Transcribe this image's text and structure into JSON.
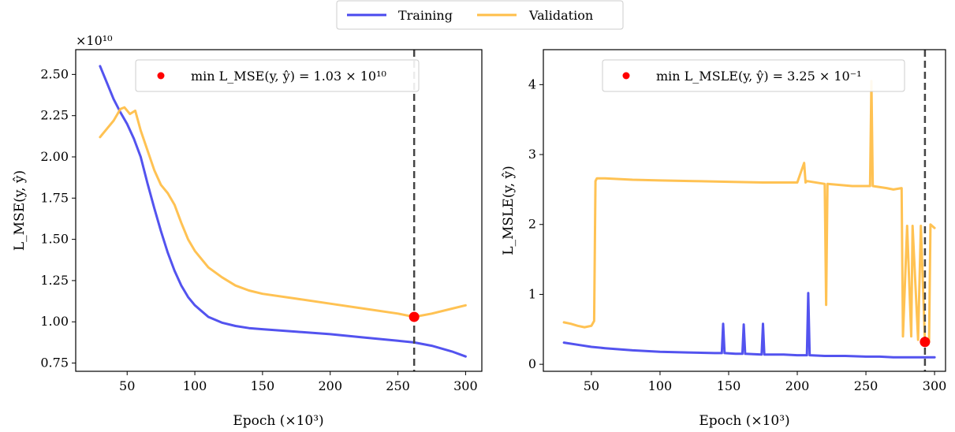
{
  "legend": {
    "items": [
      {
        "label": "Training",
        "color": "#4a4aee"
      },
      {
        "label": "Validation",
        "color": "#ffbf4a"
      }
    ]
  },
  "chart_data": [
    {
      "type": "line",
      "xlabel": "Epoch (×10³)",
      "ylabel": "L_MSE(y, ŷ)",
      "y_multiplier": "×10¹⁰",
      "xlim": [
        12,
        312
      ],
      "ylim": [
        0.7,
        2.65
      ],
      "xticks": [
        50,
        100,
        150,
        200,
        250,
        300
      ],
      "yticks": [
        0.75,
        1.0,
        1.25,
        1.5,
        1.75,
        2.0,
        2.25,
        2.5
      ],
      "ytick_labels": [
        "0.75",
        "1.00",
        "1.25",
        "1.50",
        "1.75",
        "2.00",
        "2.25",
        "2.50"
      ],
      "series": [
        {
          "name": "Training",
          "color": "#4a4aee",
          "x": [
            30,
            35,
            40,
            45,
            50,
            55,
            60,
            65,
            70,
            75,
            80,
            85,
            90,
            95,
            100,
            110,
            120,
            130,
            140,
            150,
            175,
            200,
            225,
            250,
            262,
            275,
            290,
            300
          ],
          "y": [
            2.55,
            2.45,
            2.35,
            2.27,
            2.2,
            2.11,
            2.0,
            1.84,
            1.69,
            1.55,
            1.42,
            1.31,
            1.22,
            1.15,
            1.1,
            1.03,
            0.995,
            0.975,
            0.962,
            0.955,
            0.94,
            0.925,
            0.905,
            0.885,
            0.875,
            0.855,
            0.82,
            0.79
          ]
        },
        {
          "name": "Validation",
          "color": "#ffbf4a",
          "x": [
            30,
            35,
            40,
            45,
            48,
            52,
            56,
            60,
            65,
            70,
            75,
            80,
            85,
            90,
            95,
            100,
            110,
            120,
            130,
            140,
            150,
            175,
            200,
            225,
            250,
            262,
            275,
            290,
            300
          ],
          "y": [
            2.12,
            2.17,
            2.22,
            2.29,
            2.3,
            2.26,
            2.28,
            2.16,
            2.04,
            1.92,
            1.83,
            1.78,
            1.71,
            1.6,
            1.5,
            1.43,
            1.33,
            1.27,
            1.22,
            1.19,
            1.17,
            1.14,
            1.11,
            1.08,
            1.05,
            1.03,
            1.05,
            1.08,
            1.1
          ]
        }
      ],
      "min_marker": {
        "x": 262,
        "y": 1.03,
        "color": "#ff0000"
      },
      "vline_x": 262,
      "annotation": "min L_MSE(y, ŷ) = 1.03 × 10¹⁰"
    },
    {
      "type": "line",
      "xlabel": "Epoch (×10³)",
      "ylabel": "L_MSLE(y, ŷ)",
      "xlim": [
        15,
        308
      ],
      "ylim": [
        -0.1,
        4.5
      ],
      "xticks": [
        50,
        100,
        150,
        200,
        250,
        300
      ],
      "yticks": [
        0,
        1,
        2,
        3,
        4
      ],
      "ytick_labels": [
        "0",
        "1",
        "2",
        "3",
        "4"
      ],
      "series": [
        {
          "name": "Training",
          "color": "#4a4aee",
          "x": [
            30,
            40,
            50,
            60,
            80,
            100,
            120,
            140,
            145,
            146,
            147,
            155,
            160,
            161,
            162,
            174,
            175,
            176,
            190,
            200,
            207,
            208,
            209,
            220,
            235,
            250,
            260,
            270,
            280,
            290,
            300
          ],
          "y": [
            0.31,
            0.28,
            0.25,
            0.23,
            0.2,
            0.18,
            0.17,
            0.16,
            0.16,
            0.58,
            0.16,
            0.15,
            0.15,
            0.57,
            0.15,
            0.14,
            0.58,
            0.14,
            0.14,
            0.13,
            0.13,
            1.02,
            0.13,
            0.12,
            0.12,
            0.11,
            0.11,
            0.1,
            0.1,
            0.1,
            0.1
          ]
        },
        {
          "name": "Validation",
          "color": "#ffbf4a",
          "x": [
            30,
            35,
            40,
            45,
            50,
            52,
            53,
            54,
            60,
            80,
            100,
            125,
            150,
            175,
            200,
            205,
            206,
            207,
            220,
            221,
            222,
            240,
            253,
            254,
            255,
            265,
            270,
            276,
            277,
            280,
            283,
            284,
            288,
            290,
            293,
            296,
            297,
            300
          ],
          "y": [
            0.6,
            0.58,
            0.55,
            0.53,
            0.55,
            0.62,
            2.62,
            2.66,
            2.66,
            2.64,
            2.63,
            2.62,
            2.61,
            2.6,
            2.6,
            2.88,
            2.6,
            2.62,
            2.58,
            0.85,
            2.58,
            2.55,
            2.55,
            4.05,
            2.55,
            2.52,
            2.5,
            2.52,
            0.4,
            1.98,
            0.4,
            1.98,
            0.35,
            1.98,
            0.32,
            0.32,
            2.0,
            1.95
          ]
        }
      ],
      "min_marker": {
        "x": 293,
        "y": 0.32,
        "color": "#ff0000"
      },
      "vline_x": 293,
      "annotation": "min L_MSLE(y, ŷ) = 3.25 × 10⁻¹"
    }
  ]
}
